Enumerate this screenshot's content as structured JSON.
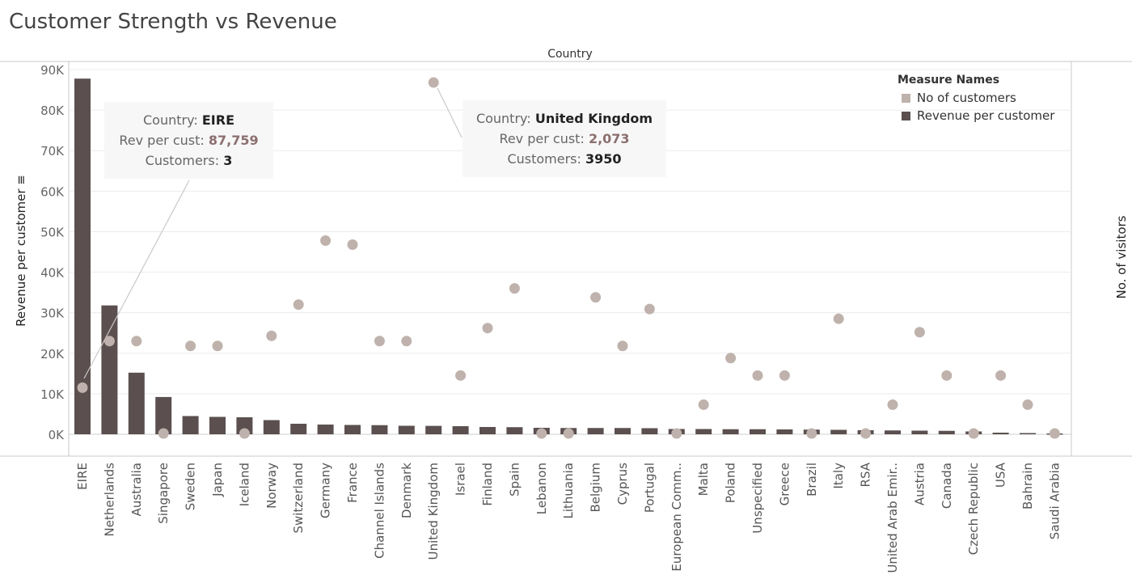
{
  "page": {
    "title": "Customer Strength vs Revenue"
  },
  "chart_data": {
    "type": "bar",
    "title": "Customer Strength vs Revenue",
    "column_header": "Country",
    "ylabel": "Revenue per customer ≡",
    "y2label": "No. of visitors",
    "ylim": [
      0,
      90000
    ],
    "yticks": [
      0,
      10000,
      20000,
      30000,
      40000,
      50000,
      60000,
      70000,
      80000,
      90000
    ],
    "ytick_labels": [
      "0K",
      "10K",
      "20K",
      "30K",
      "40K",
      "50K",
      "60K",
      "70K",
      "80K",
      "90K"
    ],
    "grid": true,
    "legend_position": "top-right",
    "categories": [
      "EIRE",
      "Netherlands",
      "Australia",
      "Singapore",
      "Sweden",
      "Japan",
      "Iceland",
      "Norway",
      "Switzerland",
      "Germany",
      "France",
      "Channel Islands",
      "Denmark",
      "United Kingdom",
      "Israel",
      "Finland",
      "Spain",
      "Lebanon",
      "Lithuania",
      "Belgium",
      "Cyprus",
      "Portugal",
      "European Comm..",
      "Malta",
      "Poland",
      "Unspecified",
      "Greece",
      "Brazil",
      "Italy",
      "RSA",
      "United Arab Emir..",
      "Austria",
      "Canada",
      "Czech Republic",
      "USA",
      "Bahrain",
      "Saudi Arabia"
    ],
    "legend_title": "Measure Names",
    "series": [
      {
        "name": "Revenue per customer",
        "kind": "bar",
        "color": "#5b4f4f",
        "values": [
          87759,
          31800,
          15200,
          9200,
          4500,
          4300,
          4200,
          3500,
          2600,
          2400,
          2300,
          2250,
          2100,
          2073,
          2000,
          1800,
          1750,
          1600,
          1550,
          1550,
          1550,
          1500,
          1300,
          1300,
          1250,
          1250,
          1200,
          1150,
          1100,
          1000,
          950,
          900,
          850,
          700,
          400,
          300,
          200
        ]
      },
      {
        "name": "No of customers",
        "kind": "circle",
        "color": "#bfb2ac",
        "values": [
          3,
          9,
          9,
          1,
          8,
          8,
          1,
          10,
          14,
          94,
          87,
          9,
          9,
          3950,
          4,
          12,
          31,
          1,
          1,
          25,
          8,
          19,
          1,
          2,
          6,
          4,
          4,
          1,
          15,
          1,
          2,
          11,
          4,
          1,
          4,
          2,
          1
        ]
      }
    ],
    "y2_positions_in_y1_units": [
      11500,
      23000,
      23000,
      200,
      21800,
      21800,
      200,
      24300,
      32000,
      47800,
      46800,
      23000,
      23000,
      86800,
      14500,
      26200,
      36000,
      200,
      200,
      33800,
      21800,
      30900,
      200,
      7300,
      18800,
      14500,
      14500,
      200,
      28500,
      200,
      7300,
      25200,
      14500,
      200,
      14500,
      7300,
      200
    ]
  },
  "tooltips": [
    {
      "country_label": "Country:",
      "country": "EIRE",
      "rev_label": "Rev per cust:",
      "rev": "87,759",
      "cust_label": "Customers:",
      "cust": "3"
    },
    {
      "country_label": "Country:",
      "country": "United Kingdom",
      "rev_label": "Rev per cust:",
      "rev": "2,073",
      "cust_label": "Customers:",
      "cust": "3950"
    }
  ]
}
